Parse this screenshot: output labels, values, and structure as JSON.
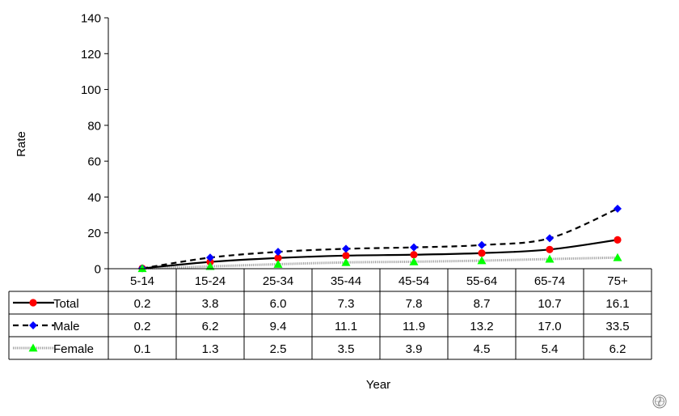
{
  "chart_data": {
    "type": "line",
    "title": "",
    "xlabel": "Year",
    "ylabel": "Rate",
    "ylim": [
      0,
      140
    ],
    "yticks": [
      "0",
      "20",
      "40",
      "60",
      "80",
      "100",
      "120",
      "140"
    ],
    "grid": false,
    "legend": "data-table-left",
    "categories": [
      "5-14",
      "15-24",
      "25-34",
      "35-44",
      "45-54",
      "55-64",
      "65-74",
      "75+"
    ],
    "series": [
      {
        "name": "Total",
        "values": [
          0.2,
          3.8,
          6.0,
          7.3,
          7.8,
          8.7,
          10.7,
          16.1
        ],
        "labels": [
          "0.2",
          "3.8",
          "6.0",
          "7.3",
          "7.8",
          "8.7",
          "10.7",
          "16.1"
        ],
        "color": "#000000",
        "marker": "circle",
        "marker_color": "#ff0000",
        "line_style": "solid"
      },
      {
        "name": "Male",
        "values": [
          0.2,
          6.2,
          9.4,
          11.1,
          11.9,
          13.2,
          17.0,
          33.5
        ],
        "labels": [
          "0.2",
          "6.2",
          "9.4",
          "11.1",
          "11.9",
          "13.2",
          "17.0",
          "33.5"
        ],
        "color": "#000000",
        "marker": "diamond",
        "marker_color": "#0000ff",
        "line_style": "dashed"
      },
      {
        "name": "Female",
        "values": [
          0.1,
          1.3,
          2.5,
          3.5,
          3.9,
          4.5,
          5.4,
          6.2
        ],
        "labels": [
          "0.1",
          "1.3",
          "2.5",
          "3.5",
          "3.9",
          "4.5",
          "5.4",
          "6.2"
        ],
        "color": "#a0a0a0",
        "marker": "triangle",
        "marker_color": "#00ff00",
        "line_style": "dotted"
      }
    ]
  },
  "logo": {
    "name": "who-emblem-icon",
    "color": "#808080"
  }
}
